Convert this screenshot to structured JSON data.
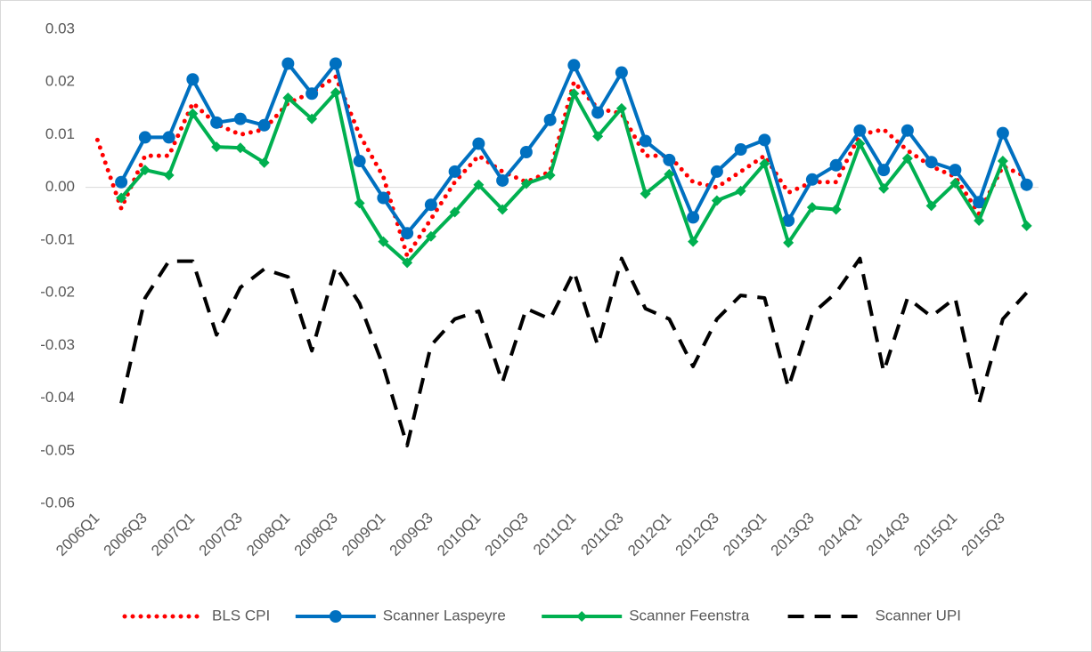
{
  "chart_data": {
    "type": "line",
    "categories": [
      "2006Q1",
      null,
      "2006Q3",
      null,
      "2007Q1",
      null,
      "2007Q3",
      null,
      "2008Q1",
      null,
      "2008Q3",
      null,
      "2009Q1",
      null,
      "2009Q3",
      null,
      "2010Q1",
      null,
      "2010Q3",
      null,
      "2011Q1",
      null,
      "2011Q3",
      null,
      "2012Q1",
      null,
      "2012Q3",
      null,
      "2013Q1",
      null,
      "2013Q3",
      null,
      "2014Q1",
      null,
      "2014Q3",
      null,
      "2015Q1",
      null,
      "2015Q3",
      null
    ],
    "ylim": [
      -0.06,
      0.03
    ],
    "yticks": [
      -0.06,
      -0.05,
      -0.04,
      -0.03,
      -0.02,
      -0.01,
      {
        "value": 0,
        "label": "0.00"
      },
      0.01,
      0.02,
      0.03
    ],
    "grid": false,
    "legend": "bottom",
    "series": [
      {
        "name": "BLS CPI",
        "color": "#ff0000",
        "style": "dotted",
        "marker": "none",
        "values": [
          0.009,
          -0.004,
          0.006,
          0.006,
          0.016,
          0.012,
          0.01,
          0.011,
          0.016,
          0.018,
          0.021,
          0.01,
          0.002,
          -0.013,
          -0.006,
          0.001,
          0.006,
          0.003,
          0.001,
          0.003,
          0.02,
          0.015,
          0.014,
          0.006,
          0.006,
          0.001,
          0.0,
          0.003,
          0.006,
          -0.001,
          0.001,
          0.001,
          0.01,
          0.011,
          0.007,
          0.004,
          0.002,
          -0.005,
          0.004,
          0.002
        ]
      },
      {
        "name": "Scanner Laspeyre",
        "color": "#0070c0",
        "style": "solid",
        "marker": "circle",
        "values": [
          null,
          0.001,
          0.0095,
          0.0095,
          0.0205,
          0.0123,
          0.013,
          0.0118,
          0.0235,
          0.0178,
          0.0235,
          0.005,
          -0.002,
          -0.0087,
          -0.0033,
          0.003,
          0.0083,
          0.0013,
          0.0067,
          0.0128,
          0.0232,
          0.0142,
          0.0218,
          0.0088,
          0.0052,
          -0.0057,
          0.003,
          0.0072,
          0.009,
          -0.0063,
          0.0015,
          0.0042,
          0.0108,
          0.0033,
          0.0108,
          0.0048,
          0.0033,
          -0.0028,
          0.0103,
          0.0005
        ]
      },
      {
        "name": "Scanner Feenstra",
        "color": "#00b050",
        "style": "solid",
        "marker": "diamond",
        "values": [
          null,
          -0.002,
          0.0033,
          0.0023,
          0.014,
          0.0077,
          0.0075,
          0.0047,
          0.017,
          0.013,
          0.018,
          -0.003,
          -0.0103,
          -0.0143,
          -0.0093,
          -0.0047,
          0.0005,
          -0.0042,
          0.0007,
          0.0023,
          0.0178,
          0.0097,
          0.015,
          -0.0012,
          0.0025,
          -0.0103,
          -0.0025,
          -0.0007,
          0.0045,
          -0.0105,
          -0.0038,
          -0.0042,
          0.0083,
          -0.0002,
          0.0055,
          -0.0035,
          0.0008,
          -0.0063,
          0.005,
          -0.0073
        ]
      },
      {
        "name": "Scanner UPI",
        "color": "#000000",
        "style": "dashed",
        "marker": "none",
        "values": [
          null,
          -0.041,
          -0.021,
          -0.014,
          -0.014,
          -0.028,
          -0.019,
          -0.0155,
          -0.017,
          -0.031,
          -0.015,
          -0.022,
          -0.034,
          -0.049,
          -0.03,
          -0.025,
          -0.0235,
          -0.037,
          -0.023,
          -0.025,
          -0.016,
          -0.03,
          -0.0135,
          -0.023,
          -0.025,
          -0.034,
          -0.025,
          -0.0205,
          -0.021,
          -0.038,
          -0.024,
          -0.02,
          -0.0135,
          -0.035,
          -0.021,
          -0.0245,
          -0.021,
          -0.041,
          -0.025,
          -0.02
        ]
      }
    ]
  }
}
